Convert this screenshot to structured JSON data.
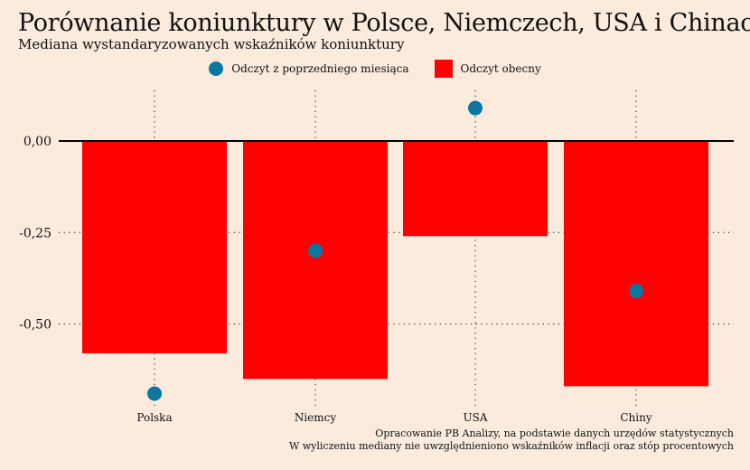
{
  "title": "Porównanie koniunktury w Polsce, Niemczech, USA i Chinach",
  "subtitle": "Mediana wystandaryzowanych wskaźników koniunktury",
  "legend": {
    "prev_label": "Odczyt z poprzedniego miesiąca",
    "curr_label": "Odczyt obecny"
  },
  "caption": {
    "line1": "Opracowanie PB Analizy, na podstawie danych urzędów statystycznych",
    "line2": "W wyliczeniu mediany nie uwzględnieniono wskaźników inflacji oraz stóp procentowych"
  },
  "colors": {
    "background": "#faebdd",
    "bar": "#ff0000",
    "point": "#0b77a0",
    "zero_line": "#000000",
    "grid": "#333333"
  },
  "chart_data": {
    "type": "bar",
    "categories": [
      "Polska",
      "Niemcy",
      "USA",
      "Chiny"
    ],
    "series": [
      {
        "name": "Odczyt obecny",
        "kind": "bar",
        "values": [
          -0.58,
          -0.65,
          -0.26,
          -0.67
        ]
      },
      {
        "name": "Odczyt z poprzedniego miesiąca",
        "kind": "point",
        "values": [
          -0.69,
          -0.3,
          0.09,
          -0.41
        ]
      }
    ],
    "ylim": [
      -0.72,
      0.13
    ],
    "yticks": [
      0,
      -0.25,
      -0.5
    ],
    "ytick_labels": [
      "0,00",
      "-0,25",
      "-0,50"
    ],
    "grid": "dotted",
    "legend_position": "top-center",
    "xlabel": "",
    "ylabel": ""
  }
}
